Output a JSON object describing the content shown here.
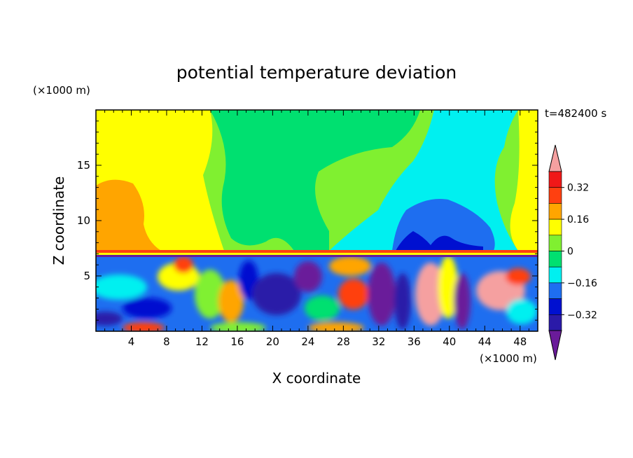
{
  "chart_data": {
    "type": "heatmap",
    "title": "potential temperature deviation",
    "xlabel": "X coordinate",
    "ylabel": "Z coordinate",
    "x_unit": "(×1000 m)",
    "y_unit": "(×1000 m)",
    "time_label": "t=482400 s",
    "xlim": [
      0,
      50
    ],
    "ylim": [
      0,
      20
    ],
    "x_ticks": [
      4,
      8,
      12,
      16,
      20,
      24,
      28,
      32,
      36,
      40,
      44,
      48
    ],
    "y_ticks": [
      5,
      10,
      15
    ],
    "colorbar": {
      "labels": [
        "0.32",
        "0.16",
        "0",
        "−0.16",
        "−0.32"
      ],
      "levels": [
        -0.4,
        -0.32,
        -0.24,
        -0.16,
        -0.08,
        0,
        0.08,
        0.16,
        0.24,
        0.32,
        0.4
      ],
      "colors": [
        "#6a1b9a",
        "#2a1aa8",
        "#0010d0",
        "#1e6ef0",
        "#00f0f0",
        "#00e070",
        "#80f030",
        "#ffff00",
        "#ffa500",
        "#ff4010",
        "#f01818",
        "#f5a0a0"
      ]
    }
  }
}
